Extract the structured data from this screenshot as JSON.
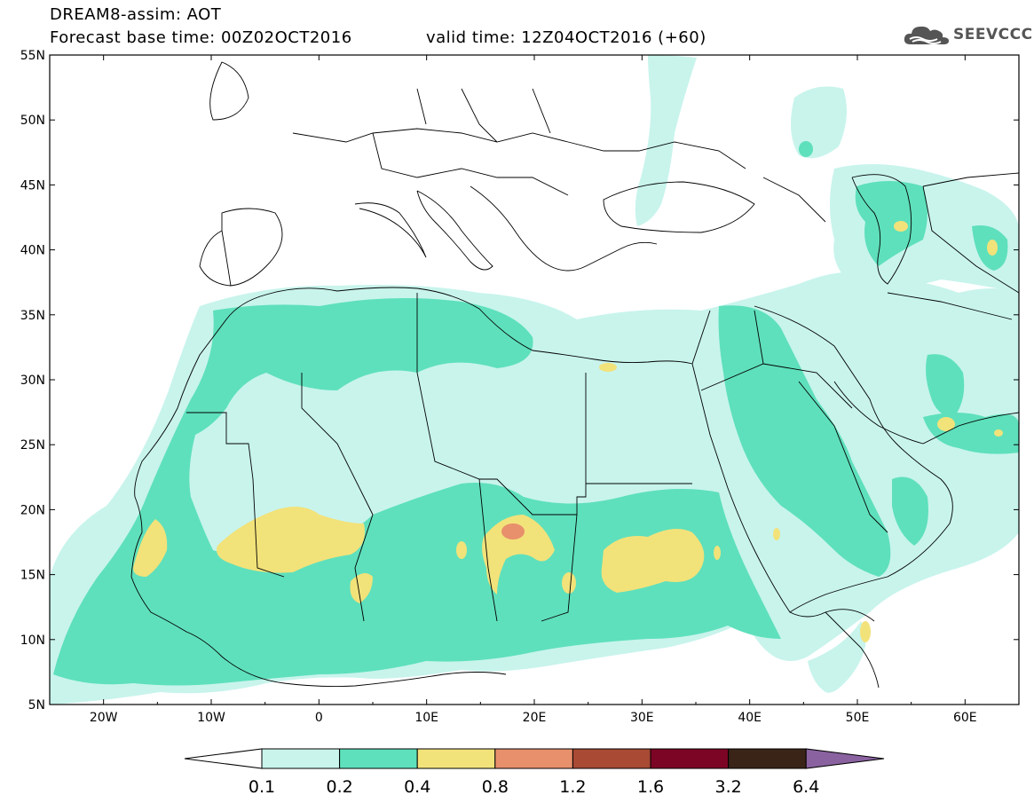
{
  "header": {
    "title_line1": "DREAM8-assim: AOT",
    "title_line2": "Forecast base time: 00Z02OCT2016",
    "valid_time": "valid time: 12Z04OCT2016 (+60)"
  },
  "logo": {
    "text": "SEEVCCC",
    "icon": "cloud-icon"
  },
  "map": {
    "lat_labels": [
      "55N",
      "50N",
      "45N",
      "40N",
      "35N",
      "30N",
      "25N",
      "20N",
      "15N",
      "10N",
      "5N"
    ],
    "lon_labels": [
      "20W",
      "10W",
      "0",
      "10E",
      "20E",
      "30E",
      "40E",
      "50E",
      "60E"
    ],
    "lat_range": [
      5,
      55
    ],
    "lon_range": [
      -25,
      65
    ],
    "colors": {
      "land_line": "#000000",
      "level_0_1": "#c8f4ec",
      "level_0_2": "#5ee0bc",
      "level_0_4": "#f2e27a",
      "level_0_8": "#e88f6c"
    }
  },
  "colorbar": {
    "labels": [
      "0.1",
      "0.2",
      "0.4",
      "0.8",
      "1.2",
      "1.6",
      "3.2",
      "6.4"
    ],
    "colors": [
      "#c8f4ec",
      "#5ee0bc",
      "#f2e27a",
      "#e88f6c",
      "#a84a34",
      "#7c0424",
      "#3a2418"
    ],
    "under_color": "#ffffff",
    "over_color": "#8a62a0"
  }
}
